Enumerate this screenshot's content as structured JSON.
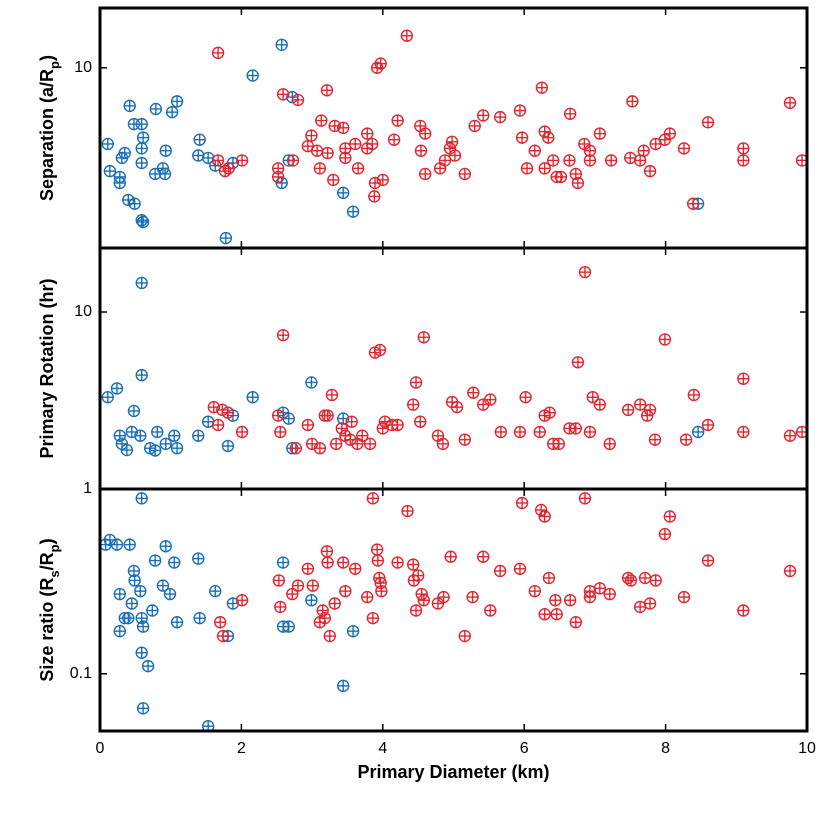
{
  "chart_data": [
    {
      "type": "scatter",
      "ylabel": [
        "Separation (a/R",
        "p",
        ")"
      ],
      "yscale": "log",
      "ylim": [
        1.85,
        17.5
      ],
      "yticks": [
        10
      ],
      "xlim": [
        0,
        10
      ],
      "xticks": [
        0,
        2,
        4,
        6,
        8,
        10
      ],
      "series": [
        {
          "color": "#1a6fb8",
          "x": [
            0.11,
            0.14,
            0.28,
            0.28,
            0.35,
            0.31,
            0.4,
            0.49,
            0.42,
            0.48,
            0.59,
            0.61,
            0.59,
            0.59,
            0.61,
            0.59,
            0.78,
            0.79,
            0.93,
            0.92,
            0.89,
            1.02,
            1.09,
            1.39,
            1.41,
            1.53,
            1.63,
            1.78,
            1.88,
            2.16,
            2.57,
            2.57,
            2.67,
            2.72,
            3.44,
            3.58,
            8.46
          ],
          "values": [
            4.9,
            3.8,
            3.6,
            3.4,
            4.5,
            4.3,
            2.9,
            2.8,
            7.0,
            5.9,
            5.9,
            5.2,
            4.7,
            4.1,
            2.36,
            2.4,
            3.7,
            6.8,
            4.6,
            3.7,
            3.9,
            6.6,
            7.3,
            4.4,
            5.1,
            4.3,
            4.0,
            2.03,
            4.1,
            9.3,
            12.4,
            3.4,
            4.2,
            7.6,
            3.1,
            2.6,
            2.8
          ]
        },
        {
          "color": "#e02630",
          "x": [
            1.67,
            1.67,
            1.77,
            1.82,
            2.01,
            2.52,
            2.52,
            2.59,
            2.73,
            2.8,
            2.94,
            2.99,
            3.07,
            3.11,
            3.13,
            3.21,
            3.22,
            3.3,
            3.32,
            3.44,
            3.47,
            3.47,
            3.61,
            3.65,
            3.78,
            3.78,
            3.85,
            3.88,
            3.89,
            3.92,
            3.97,
            4.0,
            4.16,
            4.34,
            4.21,
            4.53,
            4.6,
            4.54,
            4.6,
            4.81,
            4.88,
            4.95,
            5.02,
            4.98,
            5.16,
            5.3,
            5.42,
            5.66,
            5.94,
            5.97,
            6.04,
            6.15,
            6.25,
            6.29,
            6.29,
            6.34,
            6.41,
            6.46,
            6.52,
            6.64,
            6.65,
            6.73,
            6.76,
            6.85,
            6.93,
            6.93,
            7.07,
            7.23,
            7.5,
            7.53,
            7.64,
            7.69,
            7.78,
            7.86,
            7.99,
            8.06,
            8.26,
            8.39,
            8.6,
            9.1,
            9.1,
            9.76,
            9.93
          ],
          "values": [
            11.5,
            4.2,
            3.8,
            3.9,
            4.2,
            3.9,
            3.6,
            7.8,
            4.2,
            7.4,
            4.8,
            5.3,
            4.6,
            3.9,
            6.1,
            8.1,
            4.5,
            3.5,
            5.8,
            5.7,
            4.7,
            4.3,
            4.9,
            3.9,
            5.4,
            4.7,
            4.9,
            3.0,
            3.4,
            10,
            10.4,
            3.5,
            5.1,
            13.5,
            6.1,
            5.8,
            5.4,
            4.6,
            3.7,
            3.9,
            4.2,
            4.7,
            4.4,
            5.0,
            3.7,
            5.8,
            6.4,
            6.3,
            6.7,
            5.2,
            3.9,
            4.6,
            8.3,
            5.5,
            3.9,
            5.2,
            4.2,
            3.6,
            3.6,
            4.2,
            6.5,
            3.7,
            3.4,
            4.9,
            4.6,
            4.2,
            5.4,
            4.2,
            4.3,
            7.3,
            4.2,
            4.6,
            3.8,
            4.9,
            5.1,
            5.4,
            4.7,
            2.8,
            6.0,
            4.7,
            4.2,
            7.2,
            4.2
          ]
        }
      ]
    },
    {
      "type": "scatter",
      "ylabel": [
        "Primary Rotation (hr)"
      ],
      "yscale": "log",
      "ylim": [
        1,
        23
      ],
      "yticks": [
        1,
        10
      ],
      "xlim": [
        0,
        10
      ],
      "xticks": [
        0,
        2,
        4,
        6,
        8,
        10
      ],
      "series": [
        {
          "color": "#1a6fb8",
          "x": [
            0.11,
            0.24,
            0.28,
            0.31,
            0.38,
            0.45,
            0.48,
            0.57,
            0.59,
            0.59,
            0.71,
            0.78,
            0.81,
            0.93,
            1.05,
            1.09,
            1.39,
            1.53,
            1.81,
            1.88,
            2.16,
            2.59,
            2.67,
            2.72,
            2.99,
            3.44,
            8.46
          ],
          "values": [
            3.3,
            3.7,
            2.0,
            1.8,
            1.66,
            2.1,
            2.76,
            2.0,
            4.4,
            14.6,
            1.7,
            1.65,
            2.1,
            1.8,
            2.0,
            1.7,
            2.0,
            2.4,
            1.75,
            2.6,
            3.3,
            2.7,
            2.5,
            1.7,
            4.0,
            2.5,
            2.1
          ]
        },
        {
          "color": "#e02630",
          "x": [
            1.61,
            1.67,
            1.73,
            1.81,
            2.01,
            2.52,
            2.55,
            2.59,
            2.77,
            2.94,
            3.0,
            3.11,
            3.18,
            3.22,
            3.28,
            3.34,
            3.42,
            3.47,
            3.54,
            3.56,
            3.64,
            3.71,
            3.82,
            3.89,
            3.96,
            4.0,
            4.03,
            4.13,
            4.21,
            4.43,
            4.47,
            4.58,
            4.53,
            4.78,
            4.85,
            4.98,
            5.05,
            5.16,
            5.28,
            5.42,
            5.52,
            5.67,
            5.94,
            6.02,
            6.22,
            6.29,
            6.36,
            6.41,
            6.49,
            6.64,
            6.73,
            6.76,
            6.86,
            6.93,
            6.97,
            7.07,
            7.21,
            7.47,
            7.64,
            7.74,
            7.78,
            7.85,
            7.99,
            8.29,
            8.4,
            8.6,
            9.1,
            9.1,
            9.76,
            9.93
          ],
          "values": [
            2.9,
            2.3,
            2.8,
            2.7,
            2.1,
            2.6,
            2.1,
            7.4,
            1.7,
            2.3,
            1.8,
            1.7,
            2.6,
            2.6,
            3.4,
            1.8,
            2.2,
            2.0,
            1.9,
            2.4,
            1.8,
            2.0,
            1.8,
            5.9,
            6.1,
            2.2,
            2.4,
            2.3,
            2.3,
            3.0,
            4.0,
            7.2,
            2.4,
            2.0,
            1.8,
            3.1,
            2.9,
            1.9,
            3.5,
            3.0,
            3.2,
            2.1,
            2.1,
            3.3,
            2.1,
            2.6,
            2.7,
            1.8,
            1.8,
            2.2,
            2.2,
            5.2,
            16.8,
            2.1,
            3.3,
            3.0,
            1.8,
            2.8,
            3.0,
            2.6,
            2.8,
            1.9,
            7.0,
            1.9,
            3.4,
            2.3,
            4.2,
            2.1,
            2.0,
            2.1
          ]
        }
      ]
    },
    {
      "type": "scatter",
      "ylabel": [
        "Size ratio (R",
        "s",
        "/R",
        "p",
        ")"
      ],
      "xlabel": "Primary Diameter (km)",
      "yscale": "log",
      "ylim": [
        0.049,
        1
      ],
      "yticks": [
        0.1
      ],
      "xlim": [
        0,
        10
      ],
      "xticks": [
        0,
        2,
        4,
        6,
        8,
        10
      ],
      "series": [
        {
          "color": "#1a6fb8",
          "x": [
            0.08,
            0.14,
            0.24,
            0.28,
            0.28,
            0.35,
            0.42,
            0.4,
            0.45,
            0.48,
            0.49,
            0.57,
            0.59,
            0.61,
            0.59,
            0.61,
            0.68,
            0.74,
            0.78,
            0.89,
            0.93,
            0.99,
            1.05,
            1.09,
            1.39,
            1.41,
            1.53,
            1.63,
            1.81,
            1.88,
            0.59,
            2.59,
            2.59,
            2.67,
            2.99,
            3.44,
            3.58
          ],
          "values": [
            0.5,
            0.53,
            0.5,
            0.27,
            0.17,
            0.2,
            0.5,
            0.2,
            0.24,
            0.36,
            0.32,
            0.28,
            0.2,
            0.18,
            0.13,
            0.065,
            0.11,
            0.22,
            0.41,
            0.3,
            0.49,
            0.27,
            0.4,
            0.19,
            0.42,
            0.2,
            0.052,
            0.28,
            0.16,
            0.24,
            0.89,
            0.18,
            0.4,
            0.18,
            0.25,
            0.086,
            0.17
          ]
        },
        {
          "color": "#e02630",
          "x": [
            1.7,
            1.74,
            2.01,
            2.53,
            2.55,
            2.72,
            2.8,
            2.94,
            3.01,
            3.11,
            3.15,
            3.18,
            3.21,
            3.22,
            3.25,
            3.32,
            3.44,
            3.47,
            3.61,
            3.78,
            3.86,
            3.86,
            3.92,
            3.93,
            3.95,
            3.97,
            3.98,
            4.21,
            4.35,
            4.43,
            4.44,
            4.47,
            4.5,
            4.55,
            4.58,
            4.78,
            4.86,
            4.96,
            5.16,
            5.27,
            5.42,
            5.52,
            5.66,
            5.94,
            5.97,
            6.15,
            6.24,
            6.29,
            6.29,
            6.35,
            6.44,
            6.46,
            6.65,
            6.73,
            6.86,
            6.93,
            6.93,
            7.07,
            7.21,
            7.47,
            7.51,
            7.64,
            7.71,
            7.78,
            7.86,
            7.99,
            8.06,
            8.26,
            8.6,
            9.1,
            9.76
          ],
          "values": [
            0.19,
            0.16,
            0.25,
            0.32,
            0.23,
            0.27,
            0.3,
            0.37,
            0.3,
            0.19,
            0.22,
            0.2,
            0.46,
            0.4,
            0.16,
            0.24,
            0.4,
            0.28,
            0.37,
            0.26,
            0.2,
            0.89,
            0.47,
            0.41,
            0.33,
            0.31,
            0.28,
            0.4,
            0.76,
            0.39,
            0.32,
            0.22,
            0.34,
            0.27,
            0.25,
            0.24,
            0.26,
            0.43,
            0.16,
            0.26,
            0.43,
            0.22,
            0.36,
            0.37,
            0.84,
            0.28,
            0.77,
            0.71,
            0.21,
            0.33,
            0.25,
            0.21,
            0.25,
            0.19,
            0.89,
            0.28,
            0.26,
            0.29,
            0.27,
            0.33,
            0.32,
            0.23,
            0.33,
            0.24,
            0.32,
            0.57,
            0.71,
            0.26,
            0.41,
            0.22,
            0.36
          ]
        }
      ]
    }
  ]
}
